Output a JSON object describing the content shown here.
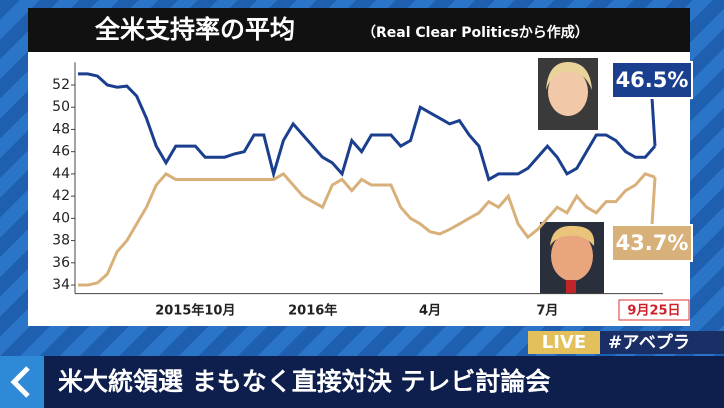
{
  "chart_data": {
    "type": "line",
    "title": "全米支持率の平均",
    "subtitle": "（Real Clear Politicsから作成）",
    "categories": [
      null,
      null,
      null,
      null,
      null,
      null,
      null,
      null,
      null,
      null,
      null,
      null,
      "2015年10月",
      null,
      null,
      null,
      null,
      null,
      null,
      null,
      null,
      null,
      null,
      null,
      "2016年",
      null,
      null,
      null,
      null,
      null,
      null,
      null,
      null,
      null,
      null,
      null,
      "4月",
      null,
      null,
      null,
      null,
      null,
      null,
      null,
      null,
      null,
      null,
      null,
      "7月",
      null,
      null,
      null,
      null,
      null,
      null,
      null,
      null,
      null,
      null,
      "9月25日"
    ],
    "series": [
      {
        "color": "#1b3f8f",
        "values": [
          53,
          53,
          52.8,
          52,
          51.8,
          51.9,
          51,
          49,
          46.5,
          45,
          46.5,
          46.5,
          46.5,
          45.5,
          45.5,
          45.5,
          45.8,
          46,
          47.5,
          47.5,
          44,
          47,
          48.5,
          47.5,
          46.5,
          45.5,
          45,
          44,
          47,
          46,
          47.5,
          47.5,
          47.5,
          46.5,
          47,
          50,
          49.5,
          49,
          48.5,
          48.8,
          47.5,
          46.5,
          43.5,
          44,
          44,
          44,
          44.5,
          45.5,
          46.5,
          45.5,
          44,
          44.5,
          46,
          47.5,
          47.5,
          47,
          46,
          45.5,
          45.5,
          46.5
        ],
        "value_labels": [
          null,
          null,
          null,
          null,
          null,
          null,
          null,
          null,
          null,
          null,
          null,
          null,
          null,
          null,
          null,
          null,
          null,
          null,
          null,
          null,
          null,
          null,
          null,
          null,
          null,
          null,
          null,
          null,
          null,
          null,
          null,
          null,
          null,
          null,
          null,
          null,
          null,
          null,
          null,
          null,
          null,
          null,
          null,
          null,
          null,
          null,
          null,
          null,
          null,
          null,
          null,
          null,
          null,
          null,
          null,
          null,
          null,
          null,
          null,
          "46.5%"
        ]
      },
      {
        "color": "#d8b07a",
        "values": [
          34,
          34,
          34.2,
          35,
          37,
          38,
          39.5,
          41,
          43,
          44,
          43.5,
          43.5,
          43.5,
          43.5,
          43.5,
          43.5,
          43.5,
          43.5,
          43.5,
          43.5,
          43.5,
          44,
          43,
          42,
          41.5,
          41,
          43,
          43.5,
          42.5,
          43.5,
          43,
          43,
          43,
          41,
          40,
          39.5,
          38.8,
          38.6,
          39,
          39.5,
          40,
          40.5,
          41.5,
          41,
          42,
          39.5,
          38.3,
          39,
          40,
          41,
          40.5,
          42,
          41,
          40.5,
          41.5,
          41.5,
          42.5,
          43,
          44,
          43.7
        ],
        "value_labels": [
          null,
          null,
          null,
          null,
          null,
          null,
          null,
          null,
          null,
          null,
          null,
          null,
          null,
          null,
          null,
          null,
          null,
          null,
          null,
          null,
          null,
          null,
          null,
          null,
          null,
          null,
          null,
          null,
          null,
          null,
          null,
          null,
          null,
          null,
          null,
          null,
          null,
          null,
          null,
          null,
          null,
          null,
          null,
          null,
          null,
          null,
          null,
          null,
          null,
          null,
          null,
          null,
          null,
          null,
          null,
          null,
          null,
          null,
          null,
          "43.7%"
        ]
      }
    ],
    "ylim": [
      33.5,
      53.5
    ],
    "yticks": [
      34,
      36,
      38,
      40,
      42,
      44,
      46,
      48,
      50,
      52
    ],
    "grid": false
  },
  "overlay": {
    "live": "LIVE",
    "hashtag": "#アベプラ",
    "headline": "米大統領選 まもなく直接対決 テレビ討論会"
  }
}
